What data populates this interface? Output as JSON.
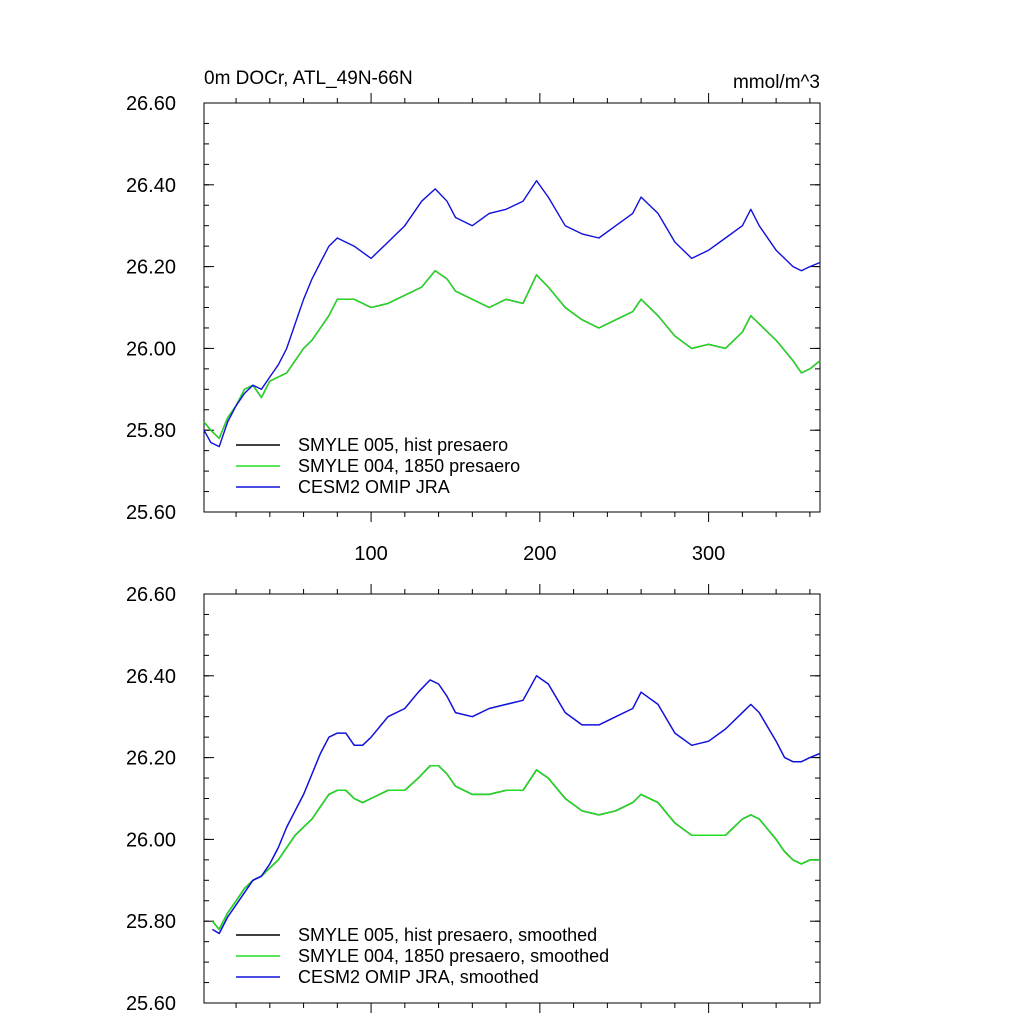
{
  "figure": {
    "title_left": "0m DOCr, ATL_49N-66N",
    "title_right": "mmol/m^3"
  },
  "colors": {
    "smyle_005": "#000000",
    "smyle_004": "#22dd22",
    "cesm2": "#1010dd"
  },
  "chart_data": [
    {
      "type": "line",
      "title": "0m DOCr, ATL_49N-66N",
      "units": "mmol/m^3",
      "xlim": [
        1,
        366
      ],
      "ylim": [
        25.6,
        26.6
      ],
      "x_ticks": [
        100,
        200,
        300
      ],
      "x_tick_labels": [
        "100",
        "200",
        "300"
      ],
      "y_ticks": [
        25.6,
        25.8,
        26.0,
        26.2,
        26.4,
        26.6
      ],
      "y_tick_labels": [
        "25.60",
        "25.80",
        "26.00",
        "26.20",
        "26.40",
        "26.60"
      ],
      "grid": false,
      "legend_position": "bottom-left",
      "series": [
        {
          "name": "SMYLE 005, hist presaero",
          "color": "#000000",
          "x": [
            1,
            5,
            10,
            15,
            20,
            25,
            30,
            35,
            40,
            45,
            50,
            55,
            60,
            65,
            70,
            75,
            80,
            90,
            100,
            110,
            120,
            130,
            138,
            145,
            150,
            160,
            170,
            180,
            190,
            198,
            205,
            215,
            225,
            235,
            245,
            255,
            260,
            270,
            280,
            290,
            300,
            310,
            320,
            325,
            330,
            340,
            350,
            355,
            360,
            366
          ],
          "y": [
            25.82,
            25.8,
            25.78,
            25.83,
            25.86,
            25.9,
            25.91,
            25.88,
            25.92,
            25.93,
            25.94,
            25.97,
            26.0,
            26.02,
            26.05,
            26.08,
            26.12,
            26.12,
            26.1,
            26.11,
            26.13,
            26.15,
            26.19,
            26.17,
            26.14,
            26.12,
            26.1,
            26.12,
            26.11,
            26.18,
            26.15,
            26.1,
            26.07,
            26.05,
            26.07,
            26.09,
            26.12,
            26.08,
            26.03,
            26.0,
            26.01,
            26.0,
            26.04,
            26.08,
            26.06,
            26.02,
            25.97,
            25.94,
            25.95,
            25.97
          ]
        },
        {
          "name": "SMYLE 004, 1850 presaero",
          "color": "#22dd22",
          "x": [
            1,
            5,
            10,
            15,
            20,
            25,
            30,
            35,
            40,
            45,
            50,
            55,
            60,
            65,
            70,
            75,
            80,
            90,
            100,
            110,
            120,
            130,
            138,
            145,
            150,
            160,
            170,
            180,
            190,
            198,
            205,
            215,
            225,
            235,
            245,
            255,
            260,
            270,
            280,
            290,
            300,
            310,
            320,
            325,
            330,
            340,
            350,
            355,
            360,
            366
          ],
          "y": [
            25.82,
            25.8,
            25.78,
            25.83,
            25.86,
            25.9,
            25.91,
            25.88,
            25.92,
            25.93,
            25.94,
            25.97,
            26.0,
            26.02,
            26.05,
            26.08,
            26.12,
            26.12,
            26.1,
            26.11,
            26.13,
            26.15,
            26.19,
            26.17,
            26.14,
            26.12,
            26.1,
            26.12,
            26.11,
            26.18,
            26.15,
            26.1,
            26.07,
            26.05,
            26.07,
            26.09,
            26.12,
            26.08,
            26.03,
            26.0,
            26.01,
            26.0,
            26.04,
            26.08,
            26.06,
            26.02,
            25.97,
            25.94,
            25.95,
            25.97
          ]
        },
        {
          "name": "CESM2 OMIP JRA",
          "color": "#1010dd",
          "x": [
            1,
            5,
            10,
            15,
            20,
            25,
            30,
            35,
            40,
            45,
            50,
            55,
            60,
            65,
            70,
            75,
            80,
            90,
            100,
            110,
            120,
            130,
            138,
            145,
            150,
            160,
            170,
            180,
            190,
            198,
            205,
            215,
            225,
            235,
            245,
            255,
            260,
            270,
            280,
            290,
            300,
            310,
            320,
            325,
            330,
            340,
            350,
            355,
            360,
            366
          ],
          "y": [
            25.8,
            25.77,
            25.76,
            25.82,
            25.86,
            25.89,
            25.91,
            25.9,
            25.93,
            25.96,
            26.0,
            26.06,
            26.12,
            26.17,
            26.21,
            26.25,
            26.27,
            26.25,
            26.22,
            26.26,
            26.3,
            26.36,
            26.39,
            26.36,
            26.32,
            26.3,
            26.33,
            26.34,
            26.36,
            26.41,
            26.37,
            26.3,
            26.28,
            26.27,
            26.3,
            26.33,
            26.37,
            26.33,
            26.26,
            26.22,
            26.24,
            26.27,
            26.3,
            26.34,
            26.3,
            26.24,
            26.2,
            26.19,
            26.2,
            26.21
          ]
        }
      ]
    },
    {
      "type": "line",
      "title": "",
      "xlim": [
        1,
        366
      ],
      "ylim": [
        25.6,
        26.6
      ],
      "x_ticks": [
        100,
        200,
        300
      ],
      "x_tick_labels": [],
      "y_ticks": [
        25.6,
        25.8,
        26.0,
        26.2,
        26.4,
        26.6
      ],
      "y_tick_labels": [
        "25.60",
        "25.80",
        "26.00",
        "26.20",
        "26.40",
        "26.60"
      ],
      "grid": false,
      "legend_position": "bottom-left",
      "series": [
        {
          "name": "SMYLE 005, hist presaero, smoothed",
          "color": "#000000",
          "x": [
            6,
            10,
            15,
            20,
            25,
            30,
            35,
            40,
            45,
            50,
            55,
            60,
            65,
            70,
            75,
            80,
            85,
            90,
            95,
            100,
            110,
            120,
            128,
            135,
            140,
            145,
            150,
            160,
            170,
            180,
            190,
            198,
            205,
            215,
            225,
            235,
            245,
            255,
            260,
            270,
            280,
            290,
            300,
            310,
            320,
            325,
            330,
            340,
            345,
            350,
            355,
            360,
            366
          ],
          "y": [
            25.8,
            25.78,
            25.82,
            25.85,
            25.88,
            25.9,
            25.91,
            25.93,
            25.95,
            25.98,
            26.01,
            26.03,
            26.05,
            26.08,
            26.11,
            26.12,
            26.12,
            26.1,
            26.09,
            26.1,
            26.12,
            26.12,
            26.15,
            26.18,
            26.18,
            26.16,
            26.13,
            26.11,
            26.11,
            26.12,
            26.12,
            26.17,
            26.15,
            26.1,
            26.07,
            26.06,
            26.07,
            26.09,
            26.11,
            26.09,
            26.04,
            26.01,
            26.01,
            26.01,
            26.05,
            26.06,
            26.05,
            26.0,
            25.97,
            25.95,
            25.94,
            25.95,
            25.95
          ]
        },
        {
          "name": "SMYLE 004, 1850 presaero, smoothed",
          "color": "#22dd22",
          "x": [
            6,
            10,
            15,
            20,
            25,
            30,
            35,
            40,
            45,
            50,
            55,
            60,
            65,
            70,
            75,
            80,
            85,
            90,
            95,
            100,
            110,
            120,
            128,
            135,
            140,
            145,
            150,
            160,
            170,
            180,
            190,
            198,
            205,
            215,
            225,
            235,
            245,
            255,
            260,
            270,
            280,
            290,
            300,
            310,
            320,
            325,
            330,
            340,
            345,
            350,
            355,
            360,
            366
          ],
          "y": [
            25.8,
            25.78,
            25.82,
            25.85,
            25.88,
            25.9,
            25.91,
            25.93,
            25.95,
            25.98,
            26.01,
            26.03,
            26.05,
            26.08,
            26.11,
            26.12,
            26.12,
            26.1,
            26.09,
            26.1,
            26.12,
            26.12,
            26.15,
            26.18,
            26.18,
            26.16,
            26.13,
            26.11,
            26.11,
            26.12,
            26.12,
            26.17,
            26.15,
            26.1,
            26.07,
            26.06,
            26.07,
            26.09,
            26.11,
            26.09,
            26.04,
            26.01,
            26.01,
            26.01,
            26.05,
            26.06,
            26.05,
            26.0,
            25.97,
            25.95,
            25.94,
            25.95,
            25.95
          ]
        },
        {
          "name": "CESM2 OMIP JRA, smoothed",
          "color": "#1010dd",
          "x": [
            6,
            10,
            15,
            20,
            25,
            30,
            35,
            40,
            45,
            50,
            55,
            60,
            65,
            70,
            75,
            80,
            85,
            90,
            95,
            100,
            110,
            120,
            128,
            135,
            140,
            145,
            150,
            160,
            170,
            180,
            190,
            198,
            205,
            215,
            225,
            235,
            245,
            255,
            260,
            270,
            280,
            290,
            300,
            310,
            320,
            325,
            330,
            340,
            345,
            350,
            355,
            360,
            366
          ],
          "y": [
            25.78,
            25.77,
            25.81,
            25.84,
            25.87,
            25.9,
            25.91,
            25.94,
            25.98,
            26.03,
            26.07,
            26.11,
            26.16,
            26.21,
            26.25,
            26.26,
            26.26,
            26.23,
            26.23,
            26.25,
            26.3,
            26.32,
            26.36,
            26.39,
            26.38,
            26.35,
            26.31,
            26.3,
            26.32,
            26.33,
            26.34,
            26.4,
            26.38,
            26.31,
            26.28,
            26.28,
            26.3,
            26.32,
            26.36,
            26.33,
            26.26,
            26.23,
            26.24,
            26.27,
            26.31,
            26.33,
            26.31,
            26.24,
            26.2,
            26.19,
            26.19,
            26.2,
            26.21
          ]
        }
      ]
    }
  ]
}
